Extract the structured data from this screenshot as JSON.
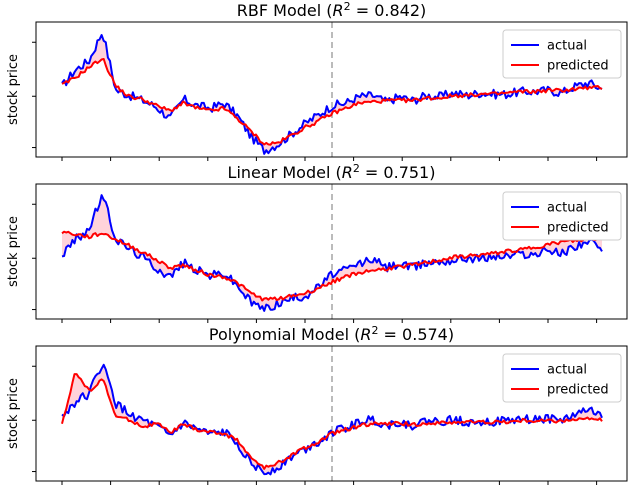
{
  "chart_data": [
    {
      "type": "line",
      "title_prefix": "RBF Model (",
      "title_r2": "R",
      "title_sup": "2",
      "title_suffix": " = 0.842)",
      "ylabel": "stock price",
      "grid": false,
      "legend_position": "top-right",
      "split_marker": {
        "style": "dashed",
        "color": "#bbbbbb",
        "x": 0.5
      },
      "colors": {
        "actual": "#0000ff",
        "predicted": "#ff0000",
        "fill": "#ffc0cb"
      },
      "x": [
        0,
        0.025,
        0.05,
        0.075,
        0.1,
        0.125,
        0.15,
        0.175,
        0.2,
        0.225,
        0.25,
        0.275,
        0.3,
        0.325,
        0.35,
        0.375,
        0.4,
        0.425,
        0.45,
        0.475,
        0.5,
        0.525,
        0.55,
        0.575,
        0.6,
        0.625,
        0.65,
        0.675,
        0.7,
        0.725,
        0.75,
        0.775,
        0.8,
        0.825,
        0.85,
        0.875,
        0.9,
        0.925,
        0.95,
        0.975,
        1
      ],
      "series": [
        {
          "name": "actual",
          "values": [
            0.55,
            0.68,
            0.75,
            0.98,
            0.52,
            0.48,
            0.44,
            0.39,
            0.3,
            0.45,
            0.4,
            0.38,
            0.42,
            0.32,
            0.16,
            0.05,
            0.1,
            0.18,
            0.26,
            0.33,
            0.4,
            0.42,
            0.47,
            0.48,
            0.43,
            0.47,
            0.44,
            0.48,
            0.47,
            0.5,
            0.48,
            0.5,
            0.49,
            0.49,
            0.51,
            0.51,
            0.52,
            0.5,
            0.55,
            0.58,
            0.53
          ]
        },
        {
          "name": "predicted",
          "values": [
            0.56,
            0.62,
            0.7,
            0.77,
            0.55,
            0.47,
            0.45,
            0.4,
            0.36,
            0.42,
            0.38,
            0.36,
            0.38,
            0.3,
            0.2,
            0.1,
            0.11,
            0.17,
            0.23,
            0.28,
            0.34,
            0.38,
            0.42,
            0.43,
            0.44,
            0.44,
            0.44,
            0.46,
            0.46,
            0.48,
            0.48,
            0.49,
            0.49,
            0.5,
            0.51,
            0.51,
            0.52,
            0.52,
            0.53,
            0.54,
            0.54
          ]
        }
      ]
    },
    {
      "type": "line",
      "title_prefix": "Linear Model (",
      "title_r2": "R",
      "title_sup": "2",
      "title_suffix": " = 0.751)",
      "ylabel": "stock price",
      "grid": false,
      "legend_position": "top-right",
      "split_marker": {
        "style": "dashed",
        "color": "#bbbbbb",
        "x": 0.5
      },
      "colors": {
        "actual": "#0000ff",
        "predicted": "#ff0000",
        "fill": "#ffc0cb"
      },
      "x": [
        0,
        0.025,
        0.05,
        0.075,
        0.1,
        0.125,
        0.15,
        0.175,
        0.2,
        0.225,
        0.25,
        0.275,
        0.3,
        0.325,
        0.35,
        0.375,
        0.4,
        0.425,
        0.45,
        0.475,
        0.5,
        0.525,
        0.55,
        0.575,
        0.6,
        0.625,
        0.65,
        0.675,
        0.7,
        0.725,
        0.75,
        0.775,
        0.8,
        0.825,
        0.85,
        0.875,
        0.9,
        0.925,
        0.95,
        0.975,
        1
      ],
      "series": [
        {
          "name": "actual",
          "values": [
            0.5,
            0.62,
            0.7,
            0.97,
            0.62,
            0.55,
            0.48,
            0.4,
            0.33,
            0.44,
            0.38,
            0.34,
            0.36,
            0.26,
            0.13,
            0.08,
            0.12,
            0.16,
            0.18,
            0.25,
            0.35,
            0.38,
            0.43,
            0.47,
            0.4,
            0.43,
            0.4,
            0.44,
            0.45,
            0.46,
            0.48,
            0.47,
            0.49,
            0.49,
            0.51,
            0.5,
            0.54,
            0.51,
            0.57,
            0.61,
            0.53
          ]
        },
        {
          "name": "predicted",
          "values": [
            0.68,
            0.66,
            0.64,
            0.67,
            0.62,
            0.57,
            0.52,
            0.46,
            0.4,
            0.42,
            0.38,
            0.34,
            0.33,
            0.28,
            0.2,
            0.15,
            0.16,
            0.18,
            0.2,
            0.24,
            0.29,
            0.33,
            0.36,
            0.38,
            0.39,
            0.41,
            0.42,
            0.44,
            0.46,
            0.48,
            0.49,
            0.5,
            0.51,
            0.53,
            0.54,
            0.56,
            0.58,
            0.6,
            0.61,
            0.62,
            0.63
          ]
        }
      ]
    },
    {
      "type": "line",
      "title_prefix": "Polynomial Model (",
      "title_r2": "R",
      "title_sup": "2",
      "title_suffix": " = 0.574)",
      "ylabel": "stock price",
      "grid": false,
      "legend_position": "top-right",
      "split_marker": {
        "style": "dashed",
        "color": "#bbbbbb",
        "x": 0.5
      },
      "colors": {
        "actual": "#0000ff",
        "predicted": "#ff0000",
        "fill": "#ffc0cb"
      },
      "x": [
        0,
        0.025,
        0.05,
        0.075,
        0.1,
        0.125,
        0.15,
        0.175,
        0.2,
        0.225,
        0.25,
        0.275,
        0.3,
        0.325,
        0.35,
        0.375,
        0.4,
        0.425,
        0.45,
        0.475,
        0.5,
        0.525,
        0.55,
        0.575,
        0.6,
        0.625,
        0.65,
        0.675,
        0.7,
        0.725,
        0.75,
        0.775,
        0.8,
        0.825,
        0.85,
        0.875,
        0.9,
        0.925,
        0.95,
        0.975,
        1
      ],
      "series": [
        {
          "name": "actual",
          "values": [
            0.5,
            0.62,
            0.68,
            0.92,
            0.6,
            0.52,
            0.47,
            0.42,
            0.35,
            0.45,
            0.4,
            0.36,
            0.38,
            0.3,
            0.14,
            0.06,
            0.11,
            0.19,
            0.25,
            0.31,
            0.38,
            0.41,
            0.46,
            0.48,
            0.43,
            0.46,
            0.43,
            0.47,
            0.46,
            0.48,
            0.46,
            0.47,
            0.46,
            0.47,
            0.48,
            0.48,
            0.49,
            0.47,
            0.52,
            0.56,
            0.5
          ]
        },
        {
          "name": "predicted",
          "values": [
            0.45,
            0.85,
            0.7,
            0.8,
            0.5,
            0.48,
            0.42,
            0.45,
            0.38,
            0.44,
            0.4,
            0.38,
            0.37,
            0.32,
            0.18,
            0.1,
            0.14,
            0.2,
            0.26,
            0.3,
            0.37,
            0.4,
            0.43,
            0.45,
            0.44,
            0.45,
            0.44,
            0.45,
            0.45,
            0.46,
            0.46,
            0.46,
            0.46,
            0.46,
            0.47,
            0.47,
            0.47,
            0.47,
            0.48,
            0.48,
            0.48
          ]
        }
      ]
    }
  ]
}
